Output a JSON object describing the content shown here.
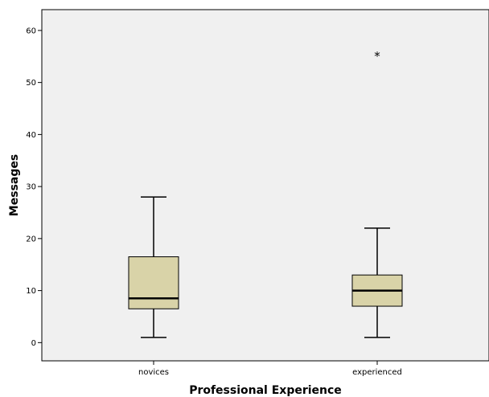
{
  "chart_data": {
    "type": "boxplot",
    "xlabel": "Professional Experience",
    "ylabel": "Messages",
    "ylim": [
      -3.5,
      64
    ],
    "yticks": [
      0,
      10,
      20,
      30,
      40,
      50,
      60
    ],
    "categories": [
      "novices",
      "experienced"
    ],
    "boxes": [
      {
        "category": "novices",
        "whisker_low": 1,
        "q1": 6.5,
        "median": 8.5,
        "q3": 16.5,
        "whisker_high": 28,
        "outliers": []
      },
      {
        "category": "experienced",
        "whisker_low": 1,
        "q1": 7,
        "median": 10,
        "q3": 13,
        "whisker_high": 22,
        "outliers": [
          {
            "value": 55.5,
            "marker": "*"
          }
        ]
      }
    ],
    "grid": false,
    "colors": {
      "plot_background": "#f0f0f0",
      "box_fill": "#d9d3a8",
      "stroke": "#000000"
    }
  }
}
